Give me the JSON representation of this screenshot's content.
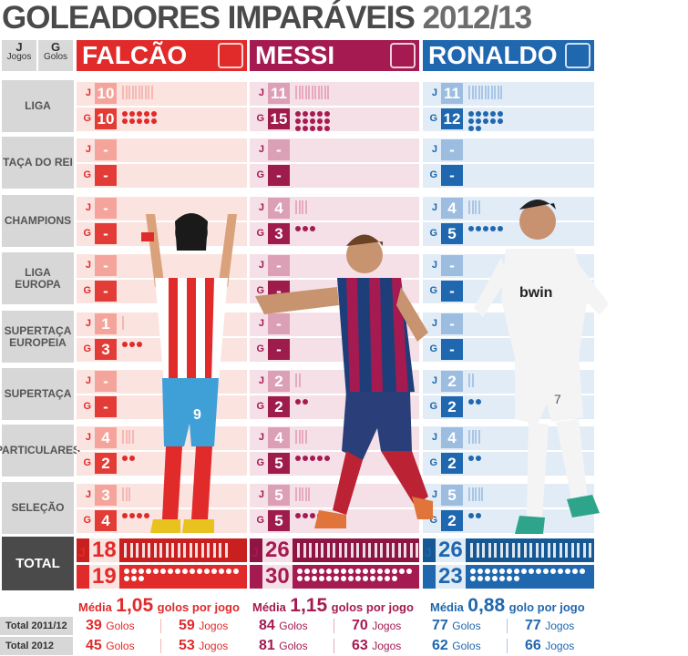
{
  "title": "GOLEADORES IMPARÁVEIS",
  "title_year": "2012/13",
  "legend": {
    "j_letter": "J",
    "j_label": "Jogos",
    "g_letter": "G",
    "g_label": "Golos"
  },
  "colors": {
    "falcao": {
      "main": "#e12a2a",
      "dark": "#c91f1f",
      "light": "#f5b8b3",
      "pale": "#fbe3e0",
      "num": "#e33b35",
      "numlight": "#f5a49b"
    },
    "messi": {
      "main": "#a51a50",
      "dark": "#8e1443",
      "light": "#e6a9bf",
      "pale": "#f6e0e8",
      "num": "#9e1c4b",
      "numlight": "#dca0b6"
    },
    "ronaldo": {
      "main": "#1f67ae",
      "dark": "#155894",
      "light": "#a9c6e6",
      "pale": "#e2ecf7",
      "num": "#1f67ae",
      "numlight": "#9dbde0"
    }
  },
  "chart_data": {
    "type": "table",
    "players": [
      "FALCÃO",
      "MESSI",
      "RONALDO"
    ],
    "categories": [
      "LIGA",
      "TAÇA DO REI",
      "CHAMPIONS",
      "LIGA EUROPA",
      "SUPERTAÇA EUROPEIA",
      "SUPERTAÇA",
      "PARTICULARES",
      "SELEÇÃO",
      "TOTAL"
    ],
    "series": [
      {
        "name": "FALCÃO",
        "jogos": [
          "10",
          "-",
          "-",
          "-",
          "1",
          "-",
          "4",
          "3",
          "18"
        ],
        "golos": [
          "10",
          "-",
          "-",
          "-",
          "3",
          "-",
          "2",
          "4",
          "19"
        ]
      },
      {
        "name": "MESSI",
        "jogos": [
          "11",
          "-",
          "4",
          "-",
          "-",
          "2",
          "4",
          "5",
          "26"
        ],
        "golos": [
          "15",
          "-",
          "3",
          "-",
          "-",
          "2",
          "5",
          "5",
          "30"
        ]
      },
      {
        "name": "RONALDO",
        "jogos": [
          "11",
          "-",
          "4",
          "-",
          "-",
          "2",
          "4",
          "5",
          "26"
        ],
        "golos": [
          "12",
          "-",
          "5",
          "-",
          "-",
          "2",
          "2",
          "2",
          "23"
        ]
      }
    ],
    "media": [
      {
        "prefix": "Média",
        "value": "1,05",
        "suffix": "golos por jogo"
      },
      {
        "prefix": "Média",
        "value": "1,15",
        "suffix": "golos por jogo"
      },
      {
        "prefix": "Média",
        "value": "0,88",
        "suffix": "golo por jogo"
      }
    ],
    "footer": {
      "labels": [
        "Total 2011/12",
        "Total 2012"
      ],
      "unit_golos": "Golos",
      "unit_jogos": "Jogos",
      "rows": [
        [
          [
            "39",
            "59"
          ],
          [
            "84",
            "70"
          ],
          [
            "77",
            "77"
          ]
        ],
        [
          [
            "45",
            "53"
          ],
          [
            "81",
            "63"
          ],
          [
            "62",
            "66"
          ]
        ]
      ]
    }
  },
  "row_j": "J",
  "row_g": "G"
}
